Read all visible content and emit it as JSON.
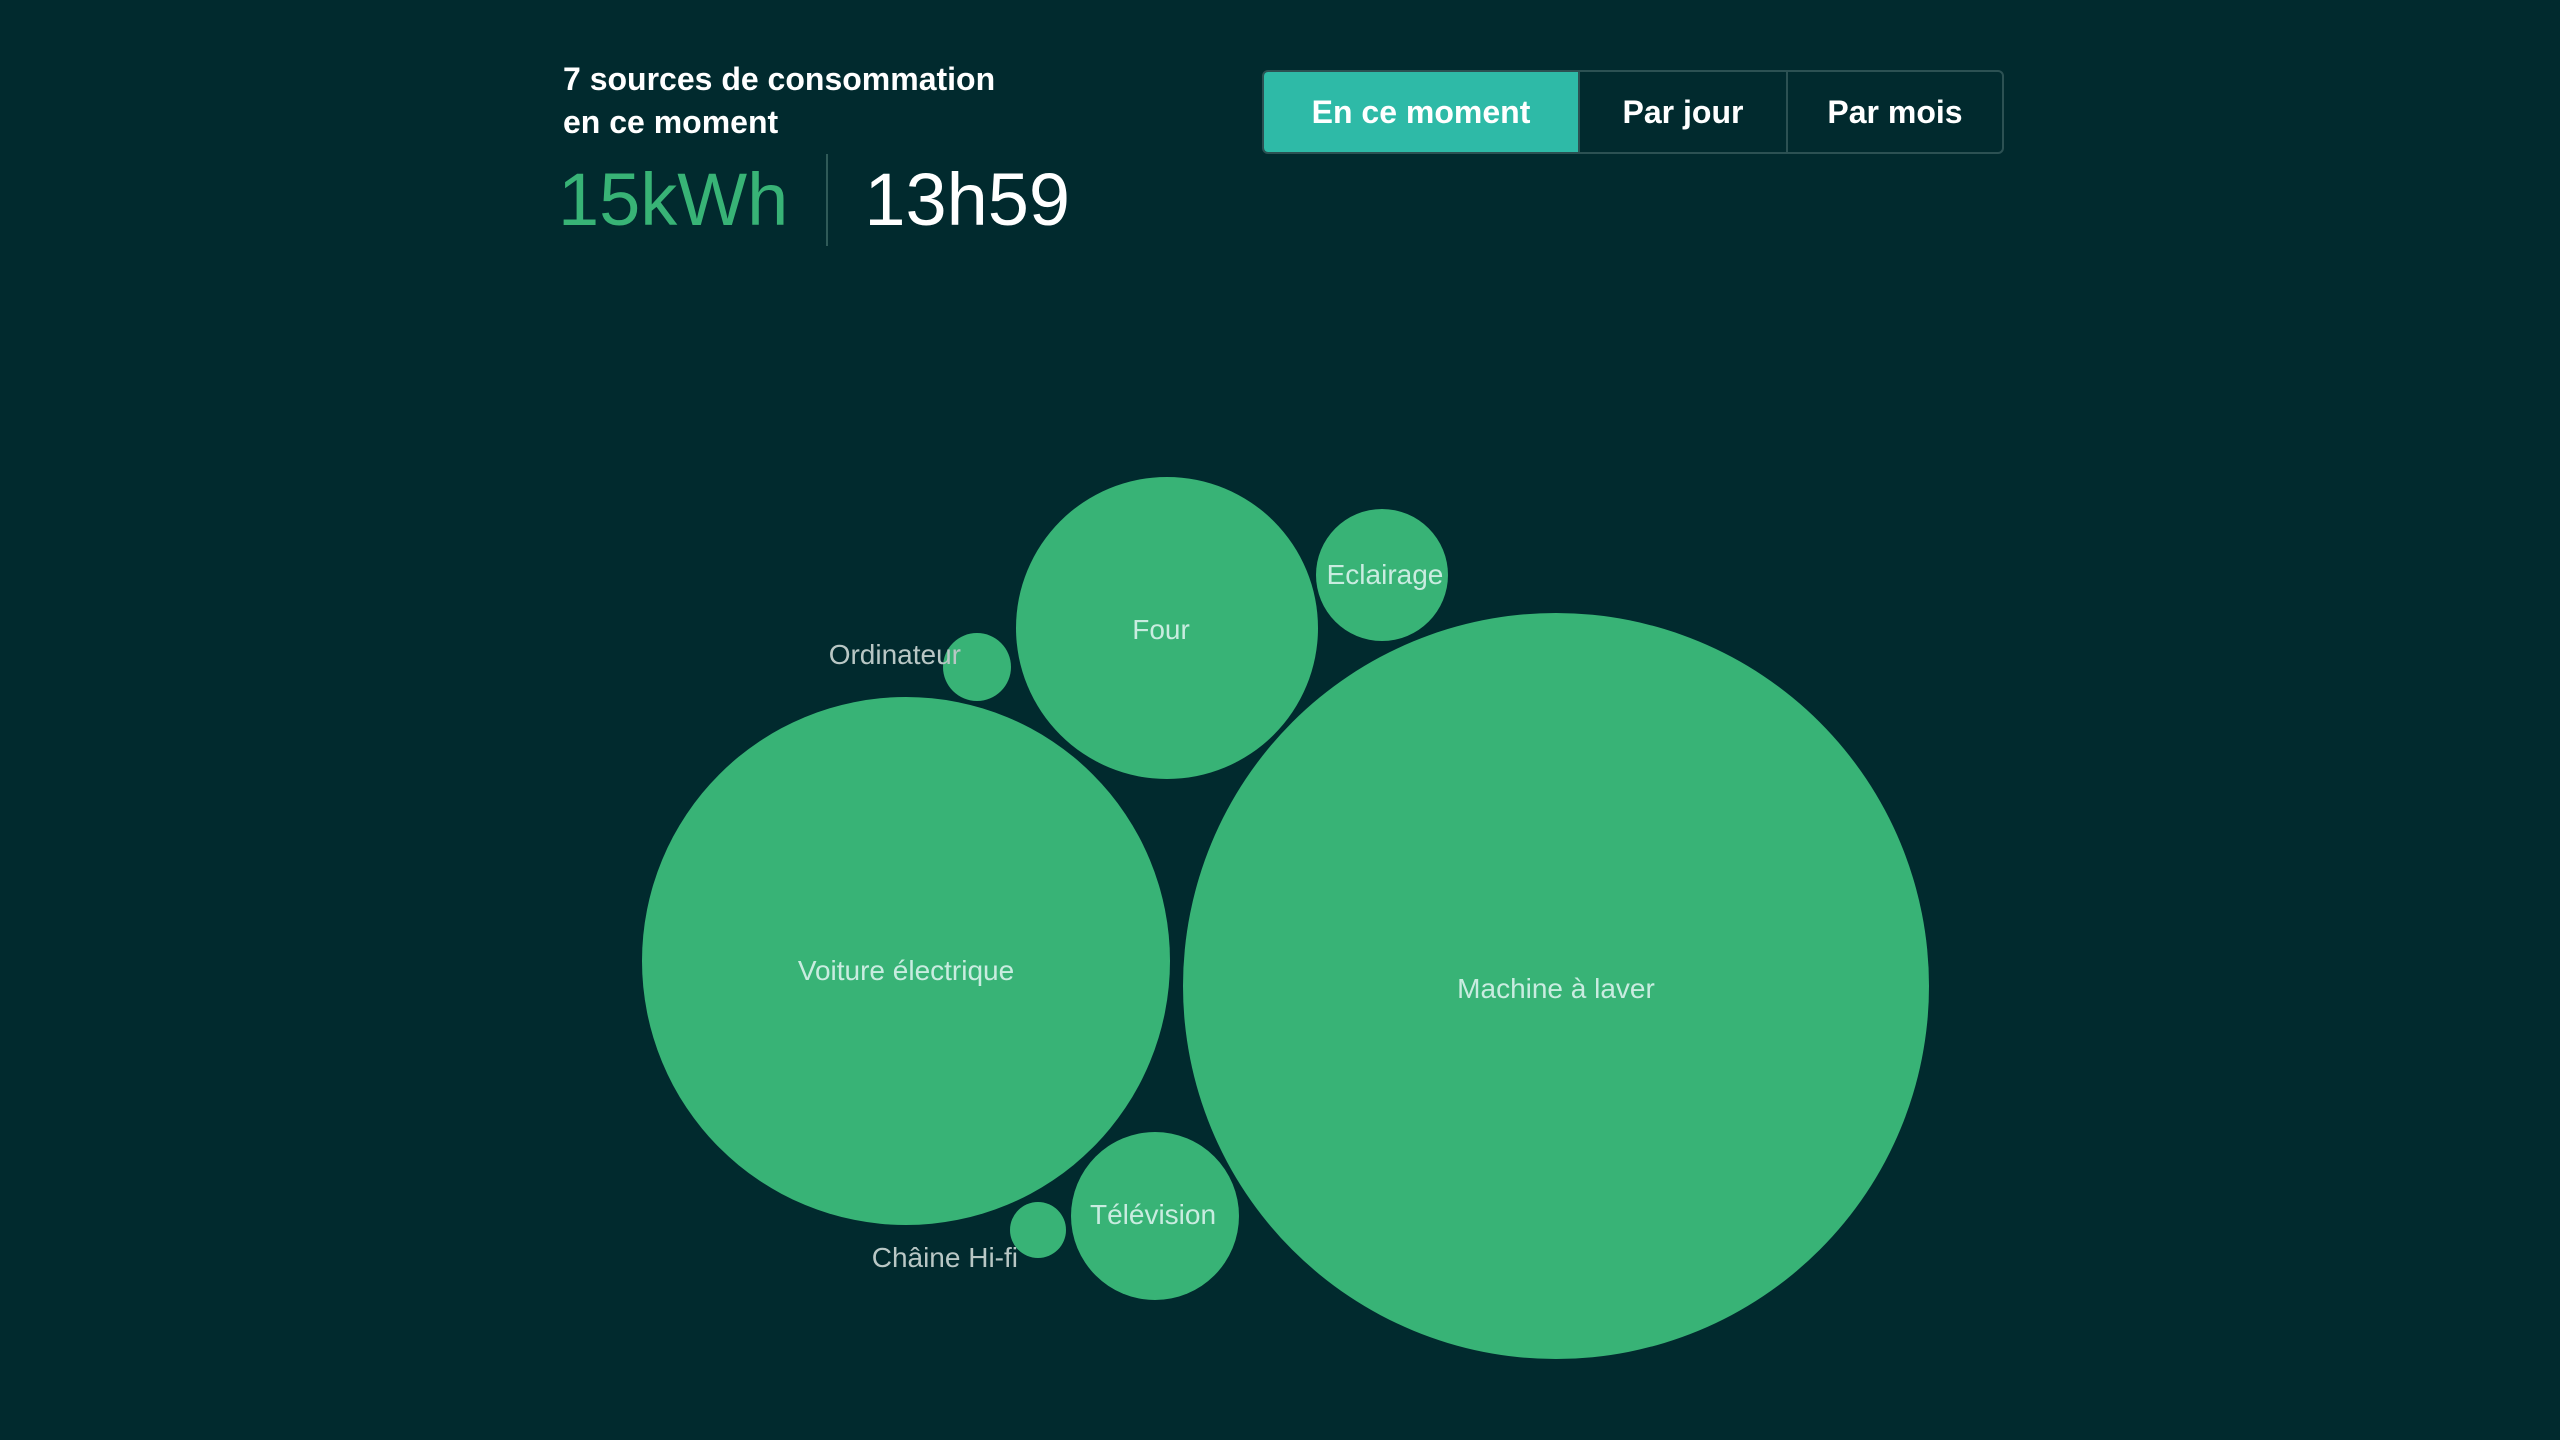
{
  "header": {
    "subtitle_line1": "7 sources de consommation",
    "subtitle_line2": "en ce moment",
    "energy_value": "15kWh",
    "time_value": "13h59"
  },
  "tabs": [
    {
      "label": "En ce moment",
      "active": true
    },
    {
      "label": "Par jour",
      "active": false
    },
    {
      "label": "Par mois",
      "active": false
    }
  ],
  "colors": {
    "background": "#012a2e",
    "bubble": "#38b376",
    "accent_tab": "#2ebaa7",
    "energy_text": "#38b376"
  },
  "sources": [
    {
      "name": "Four",
      "label_outside": false
    },
    {
      "name": "Eclairage",
      "label_outside": false
    },
    {
      "name": "Ordinateur",
      "label_outside": true
    },
    {
      "name": "Voiture électrique",
      "label_outside": false
    },
    {
      "name": "Machine à laver",
      "label_outside": false
    },
    {
      "name": "Télévision",
      "label_outside": false
    },
    {
      "name": "Châine Hi-fi",
      "label_outside": true
    }
  ]
}
